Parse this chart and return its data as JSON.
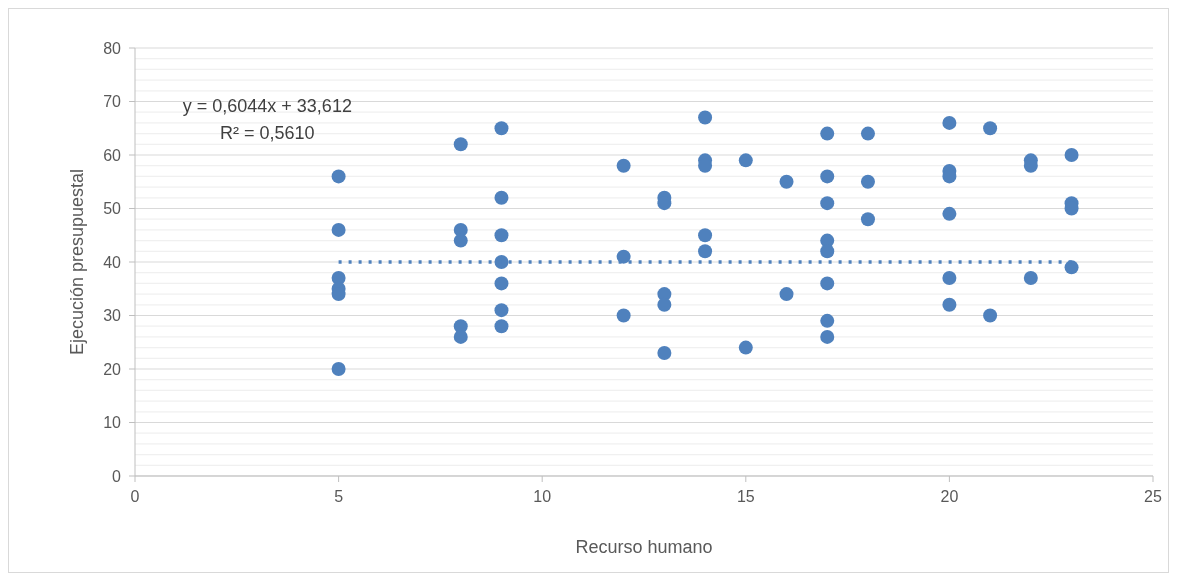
{
  "chart_data": {
    "type": "scatter",
    "xlabel": "Recurso humano",
    "ylabel": "Ejecución presupuestal",
    "xlim": [
      0,
      25
    ],
    "xticks": [
      0,
      5,
      10,
      15,
      20,
      25
    ],
    "ylim": [
      0,
      80
    ],
    "yticks": [
      0,
      {
        "value": 2,
        "label": null
      },
      {
        "value": 4,
        "label": null
      },
      {
        "value": 6,
        "label": null
      },
      {
        "value": 8,
        "label": null
      },
      10,
      {
        "value": 12,
        "label": null
      },
      {
        "value": 14,
        "label": null
      },
      {
        "value": 16,
        "label": null
      },
      {
        "value": 18,
        "label": null
      },
      20,
      {
        "value": 22,
        "label": null
      },
      {
        "value": 24,
        "label": null
      },
      {
        "value": 26,
        "label": null
      },
      {
        "value": 28,
        "label": null
      },
      30,
      {
        "value": 32,
        "label": null
      },
      {
        "value": 34,
        "label": null
      },
      {
        "value": 36,
        "label": null
      },
      {
        "value": 38,
        "label": null
      },
      40,
      {
        "value": 42,
        "label": null
      },
      {
        "value": 44,
        "label": null
      },
      {
        "value": 46,
        "label": null
      },
      {
        "value": 48,
        "label": null
      },
      50,
      {
        "value": 52,
        "label": null
      },
      {
        "value": 54,
        "label": null
      },
      {
        "value": 56,
        "label": null
      },
      {
        "value": 58,
        "label": null
      },
      60,
      {
        "value": 62,
        "label": null
      },
      {
        "value": 64,
        "label": null
      },
      {
        "value": 66,
        "label": null
      },
      {
        "value": 68,
        "label": null
      },
      70,
      {
        "value": 72,
        "label": null
      },
      {
        "value": 74,
        "label": null
      },
      {
        "value": 76,
        "label": null
      },
      {
        "value": 78,
        "label": null
      },
      80
    ],
    "grid": "y",
    "annotations": [
      "y = 0,6044x + 33,612",
      "R² = 0,5610"
    ],
    "series": [
      {
        "color": "#4f81bd",
        "marker": "circle",
        "x": [
          5,
          5,
          5,
          5,
          5,
          5,
          8,
          8,
          8,
          8,
          8,
          9,
          9,
          9,
          9,
          9,
          9,
          9,
          12,
          12,
          12,
          13,
          13,
          13,
          13,
          13,
          14,
          14,
          14,
          14,
          14,
          15,
          15,
          16,
          16,
          17,
          17,
          17,
          17,
          17,
          17,
          17,
          17,
          18,
          18,
          18,
          20,
          20,
          20,
          20,
          20,
          20,
          21,
          21,
          22,
          22,
          22,
          23,
          23,
          23,
          23
        ],
        "values": [
          56,
          46,
          37,
          35,
          34,
          20,
          62,
          46,
          44,
          28,
          26,
          65,
          52,
          45,
          40,
          36,
          31,
          28,
          58,
          41,
          30,
          52,
          51,
          34,
          32,
          23,
          67,
          59,
          58,
          45,
          42,
          59,
          24,
          55,
          34,
          64,
          56,
          51,
          44,
          42,
          36,
          29,
          26,
          64,
          55,
          48,
          66,
          57,
          56,
          49,
          37,
          32,
          65,
          30,
          59,
          58,
          37,
          60,
          51,
          50,
          39
        ]
      },
      {
        "type": "line",
        "color": "#4f81bd",
        "marker": "none",
        "line_style": "dotted",
        "x": [
          5,
          23
        ],
        "values": [
          40,
          40
        ]
      }
    ]
  }
}
